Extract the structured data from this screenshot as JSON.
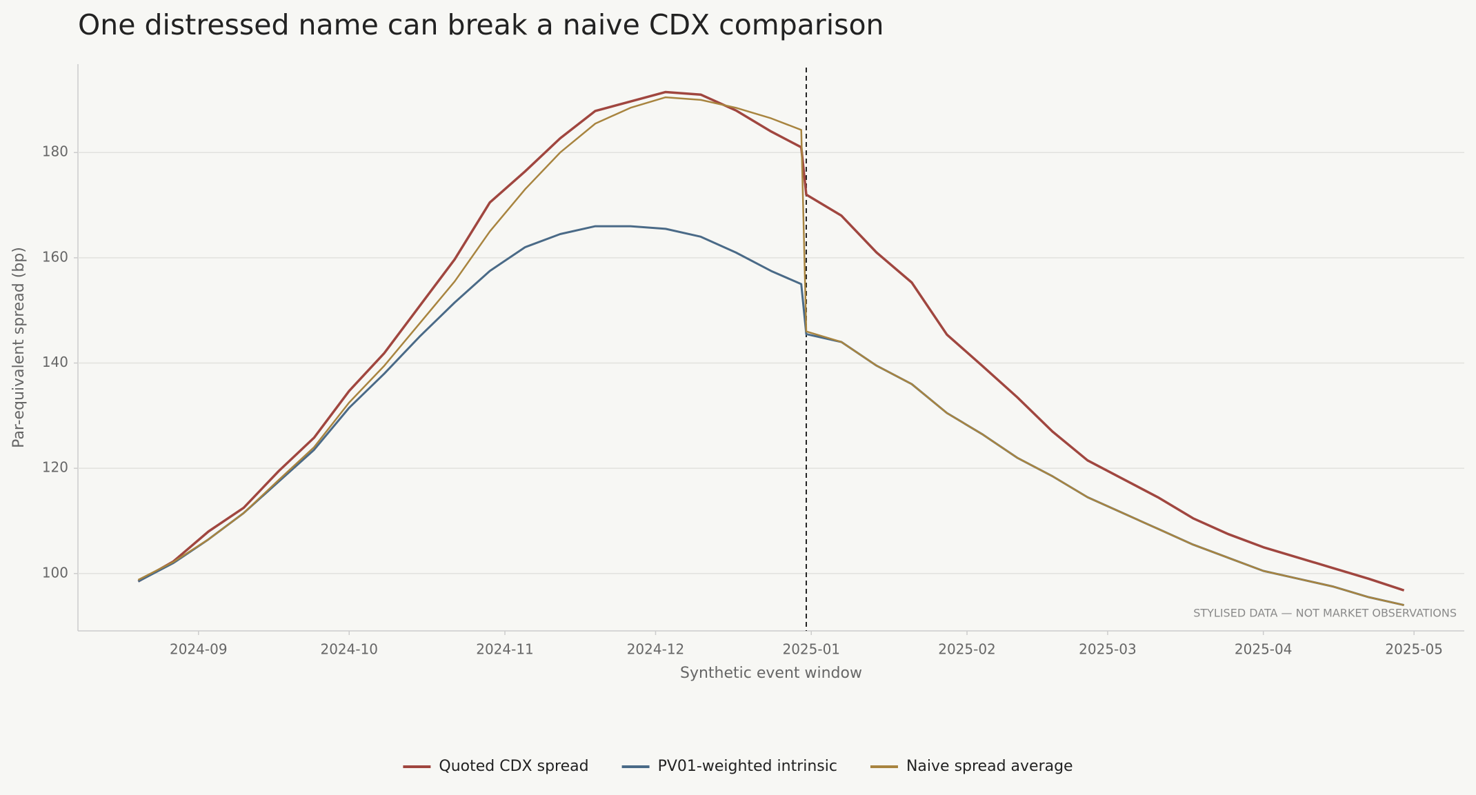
{
  "chart_data": {
    "type": "line",
    "title": "One distressed name can break a naive CDX comparison",
    "x_label": "Synthetic event window",
    "y_label": "Par-equivalent spread (bp)",
    "annotation": "STYLISED DATA — NOT MARKET OBSERVATIONS",
    "event_line": "2024-12-31",
    "x": [
      "2024-08-20",
      "2024-08-27",
      "2024-09-03",
      "2024-09-10",
      "2024-09-17",
      "2024-09-24",
      "2024-10-01",
      "2024-10-08",
      "2024-10-15",
      "2024-10-22",
      "2024-10-29",
      "2024-11-05",
      "2024-11-12",
      "2024-11-19",
      "2024-11-26",
      "2024-12-03",
      "2024-12-10",
      "2024-12-17",
      "2024-12-24",
      "2024-12-30",
      "2024-12-31",
      "2025-01-07",
      "2025-01-14",
      "2025-01-21",
      "2025-01-28",
      "2025-02-04",
      "2025-02-11",
      "2025-02-18",
      "2025-02-25",
      "2025-03-04",
      "2025-03-11",
      "2025-03-18",
      "2025-03-25",
      "2025-04-01",
      "2025-04-08",
      "2025-04-15",
      "2025-04-22",
      "2025-04-29"
    ],
    "series": [
      {
        "name": "Quoted CDX spread",
        "color": "#a0463f",
        "width": 3.5,
        "values": [
          98.5,
          102.3,
          108,
          112.5,
          119.5,
          125.8,
          134.7,
          141.9,
          150.8,
          159.7,
          170.5,
          176.4,
          182.7,
          187.9,
          189.7,
          191.5,
          191,
          188,
          184,
          181,
          172,
          168,
          161,
          155.3,
          145.4,
          139.5,
          133.5,
          127,
          121.5,
          118,
          114.5,
          110.5,
          107.5,
          105,
          103,
          101,
          99,
          96.8
        ]
      },
      {
        "name": "PV01-weighted intrinsic",
        "color": "#4a6a87",
        "width": 3,
        "values": [
          98.5,
          102,
          106.5,
          111.5,
          117.5,
          123.5,
          131.5,
          138,
          145,
          151.5,
          157.5,
          162,
          164.5,
          166,
          166,
          165.5,
          164,
          161,
          157.5,
          155,
          145.5,
          144,
          139.5,
          136,
          130.5,
          126.5,
          122,
          118.5,
          114.5,
          111.5,
          108.5,
          105.5,
          103,
          100.5,
          99,
          97.5,
          95.5,
          94
        ]
      },
      {
        "name": "Naive spread average",
        "color": "#a8843f",
        "width": 2.5,
        "values": [
          98.8,
          102.2,
          106.5,
          111.5,
          117.8,
          124,
          132.5,
          139.5,
          147.5,
          155.5,
          165,
          173,
          180,
          185.5,
          188.5,
          190.5,
          190,
          188.5,
          186.5,
          184.3,
          146,
          144,
          139.5,
          136,
          130.5,
          126.5,
          122,
          118.5,
          114.5,
          111.5,
          108.5,
          105.5,
          103,
          100.5,
          99,
          97.5,
          95.5,
          94
        ]
      }
    ],
    "xlim": [
      "2024-08-08",
      "2025-05-11"
    ],
    "xticks": [
      {
        "value": "2024-09-01",
        "label": "2024-09"
      },
      {
        "value": "2024-10-01",
        "label": "2024-10"
      },
      {
        "value": "2024-11-01",
        "label": "2024-11"
      },
      {
        "value": "2024-12-01",
        "label": "2024-12"
      },
      {
        "value": "2025-01-01",
        "label": "2025-01"
      },
      {
        "value": "2025-02-01",
        "label": "2025-02"
      },
      {
        "value": "2025-03-01",
        "label": "2025-03"
      },
      {
        "value": "2025-04-01",
        "label": "2025-04"
      },
      {
        "value": "2025-05-01",
        "label": "2025-05"
      }
    ],
    "ylim": [
      89.1,
      196.8
    ],
    "yticks": [
      100,
      120,
      140,
      160,
      180
    ],
    "grid": true,
    "legend": "bottom"
  }
}
